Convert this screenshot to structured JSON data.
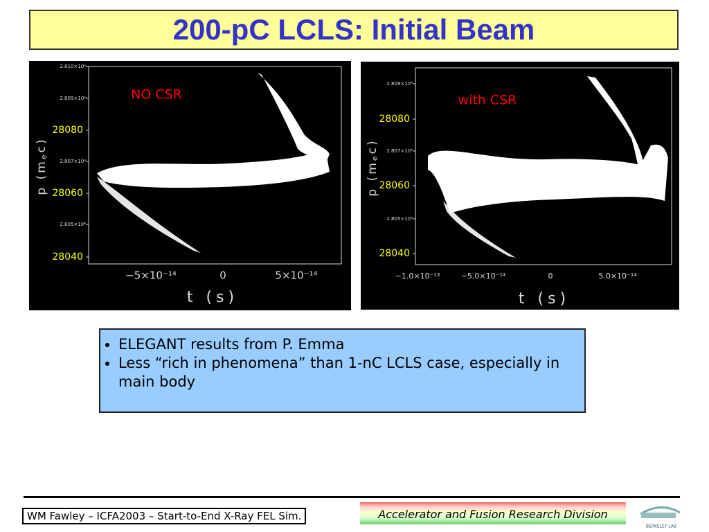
{
  "header": {
    "title": "200-pC LCLS: Initial Beam"
  },
  "figures": [
    {
      "annotation": "NO CSR",
      "y_ticks": [
        "2.810×10⁴",
        "2.809×10⁴",
        "2.807×10⁴",
        "2.805×10⁴"
      ],
      "overlay_labels": [
        "28080",
        "28060",
        "28040"
      ],
      "x_ticks": [
        "−5×10⁻¹⁴",
        "0",
        "5×10⁻¹⁴"
      ],
      "x_label": "t (s)",
      "y_label": [
        "p (m",
        "e",
        "c)"
      ]
    },
    {
      "annotation": "with CSR",
      "y_ticks": [
        "2.809×10⁴",
        "2.807×10⁴",
        "2.805×10⁴"
      ],
      "overlay_labels": [
        "28080",
        "28060",
        "28040"
      ],
      "x_ticks": [
        "−1.0×10⁻¹³",
        "−5.0×10⁻¹⁴",
        "0",
        "5.0×10⁻¹⁴"
      ],
      "x_label": "t (s)",
      "y_label": [
        "p (m",
        "e",
        "c)"
      ]
    }
  ],
  "bullets": [
    "ELEGANT results from P. Emma",
    "Less “rich in phenomena” than 1-nC LCLS case, especially in main body"
  ],
  "footer": {
    "left": "WM Fawley – ICFA2003 – Start-to-End X-Ray FEL Sim.",
    "right": "Accelerator and Fusion Research Division",
    "logo": "BERKELEY LAB"
  }
}
